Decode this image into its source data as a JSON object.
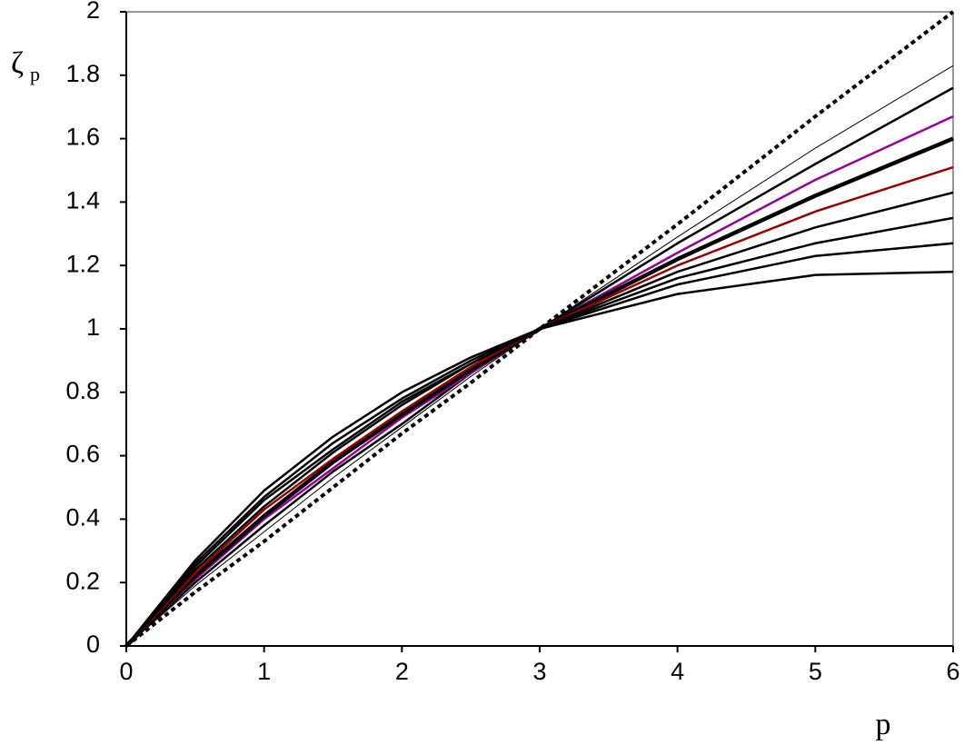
{
  "chart_data": {
    "type": "line",
    "y_label": "ζ",
    "y_label_sub": "p",
    "x_label": "p",
    "x": [
      0,
      0.5,
      1,
      1.5,
      2,
      2.5,
      3,
      4,
      5,
      6
    ],
    "xlim": [
      0,
      6
    ],
    "xticks": [
      0,
      1,
      2,
      3,
      4,
      5,
      6
    ],
    "ylim": [
      0,
      2
    ],
    "yticks": [
      0,
      0.2,
      0.4,
      0.6,
      0.8,
      1,
      1.2,
      1.4,
      1.6,
      1.8,
      2
    ],
    "series": [
      {
        "color": "#000000",
        "width": 4,
        "style": "dotted",
        "values": [
          0,
          0.17,
          0.33,
          0.5,
          0.67,
          0.83,
          1,
          1.33,
          1.67,
          2
        ]
      },
      {
        "color": "#000000",
        "width": 1,
        "style": "solid",
        "values": [
          0,
          0.19,
          0.36,
          0.53,
          0.69,
          0.85,
          1,
          1.29,
          1.57,
          1.83
        ]
      },
      {
        "color": "#000000",
        "width": 2.5,
        "style": "solid",
        "values": [
          0,
          0.2,
          0.38,
          0.55,
          0.7,
          0.86,
          1,
          1.27,
          1.52,
          1.76
        ]
      },
      {
        "color": "#990099",
        "width": 2.5,
        "style": "solid",
        "values": [
          0,
          0.21,
          0.4,
          0.56,
          0.72,
          0.86,
          1,
          1.24,
          1.47,
          1.67
        ]
      },
      {
        "color": "#000000",
        "width": 4.5,
        "style": "solid",
        "values": [
          0,
          0.22,
          0.41,
          0.58,
          0.73,
          0.87,
          1,
          1.22,
          1.42,
          1.6
        ]
      },
      {
        "color": "#990000",
        "width": 2.5,
        "style": "solid",
        "values": [
          0,
          0.23,
          0.43,
          0.59,
          0.74,
          0.88,
          1,
          1.2,
          1.37,
          1.51
        ]
      },
      {
        "color": "#000000",
        "width": 2.5,
        "style": "solid",
        "values": [
          0,
          0.24,
          0.44,
          0.61,
          0.76,
          0.89,
          1,
          1.18,
          1.32,
          1.43
        ]
      },
      {
        "color": "#000000",
        "width": 2.5,
        "style": "solid",
        "values": [
          0,
          0.25,
          0.46,
          0.62,
          0.77,
          0.89,
          1,
          1.16,
          1.27,
          1.35
        ]
      },
      {
        "color": "#000000",
        "width": 2.5,
        "style": "solid",
        "values": [
          0,
          0.26,
          0.47,
          0.64,
          0.78,
          0.9,
          1,
          1.14,
          1.23,
          1.27
        ]
      },
      {
        "color": "#000000",
        "width": 2.5,
        "style": "solid",
        "values": [
          0,
          0.27,
          0.49,
          0.66,
          0.8,
          0.91,
          1,
          1.11,
          1.17,
          1.18
        ]
      }
    ]
  }
}
